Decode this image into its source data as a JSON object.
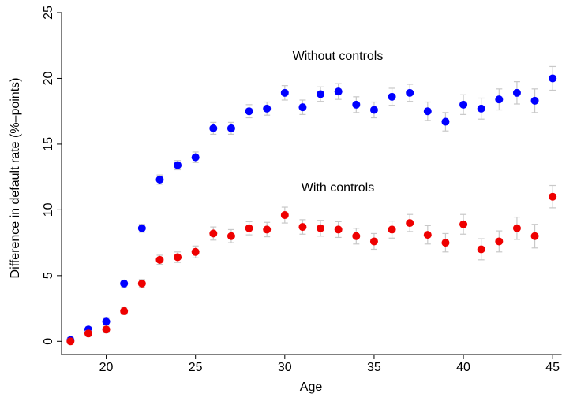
{
  "chart_data": {
    "type": "scatter",
    "xlabel": "Age",
    "ylabel": "Difference in default rate (%–points)",
    "annotations": [
      "Without controls",
      "With controls"
    ],
    "x": [
      18,
      19,
      20,
      21,
      22,
      23,
      24,
      25,
      26,
      27,
      28,
      29,
      30,
      31,
      32,
      33,
      34,
      35,
      36,
      37,
      38,
      39,
      40,
      41,
      42,
      43,
      44,
      45
    ],
    "series": [
      {
        "name": "Without controls",
        "color": "#0000ff",
        "values": [
          0.1,
          0.9,
          1.5,
          4.4,
          8.6,
          12.3,
          13.4,
          14.0,
          16.2,
          16.2,
          17.5,
          17.7,
          18.9,
          17.8,
          18.8,
          19.0,
          18.0,
          17.6,
          18.6,
          18.9,
          17.5,
          16.7,
          18.0,
          17.7,
          18.4,
          18.9,
          18.3,
          20.0
        ],
        "errors": [
          0.2,
          0.2,
          0.25,
          0.25,
          0.3,
          0.35,
          0.35,
          0.4,
          0.45,
          0.45,
          0.5,
          0.5,
          0.55,
          0.55,
          0.55,
          0.6,
          0.6,
          0.6,
          0.65,
          0.65,
          0.7,
          0.7,
          0.75,
          0.8,
          0.8,
          0.85,
          0.9,
          0.9
        ]
      },
      {
        "name": "With controls",
        "color": "#ee0000",
        "values": [
          0.0,
          0.6,
          0.9,
          2.3,
          4.4,
          6.2,
          6.4,
          6.8,
          8.2,
          8.0,
          8.6,
          8.5,
          9.6,
          8.7,
          8.6,
          8.5,
          8.0,
          7.6,
          8.5,
          9.0,
          8.1,
          7.5,
          8.9,
          7.0,
          7.6,
          8.6,
          8.0,
          11.0
        ],
        "errors": [
          0.2,
          0.2,
          0.25,
          0.25,
          0.3,
          0.35,
          0.4,
          0.45,
          0.5,
          0.5,
          0.5,
          0.55,
          0.6,
          0.55,
          0.6,
          0.6,
          0.6,
          0.6,
          0.65,
          0.65,
          0.7,
          0.7,
          0.75,
          0.8,
          0.8,
          0.85,
          0.9,
          0.85
        ]
      }
    ],
    "errorbar_color": "#c8c8c8",
    "xlim": [
      17.5,
      45.5
    ],
    "xticks": [
      20,
      25,
      30,
      35,
      40,
      45
    ],
    "ylim": [
      -1,
      25
    ],
    "yticks": [
      0,
      5,
      10,
      15,
      20,
      25
    ],
    "grid": false
  }
}
